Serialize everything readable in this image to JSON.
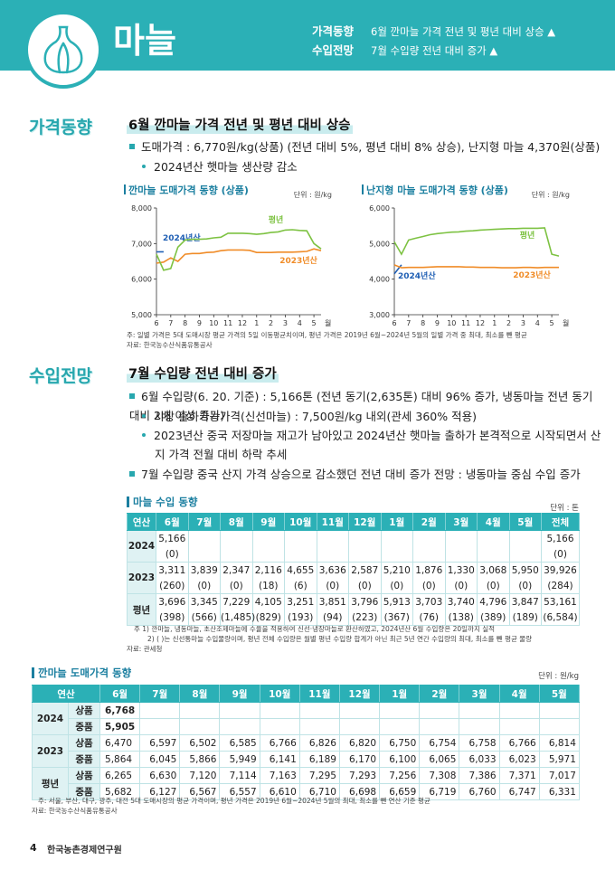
{
  "header": {
    "title": "마늘",
    "summary": [
      {
        "label": "가격동향",
        "text": "6월 깐마늘 가격 전년 및 평년 대비 상승 ▲"
      },
      {
        "label": "수입전망",
        "text": "7월 수입량 전년 대비 증가 ▲"
      }
    ]
  },
  "price": {
    "label": "가격동향",
    "title": "6월 깐마늘 가격 전년 및 평년 대비 상승",
    "bullet": "도매가격 : 6,770원/kg(상품) (전년 대비 5%, 평년 대비 8% 상승), 난지형 마늘 4,370원(상품)",
    "sub": "2024년산 햇마늘 생산량 감소",
    "charts": [
      {
        "type": "line",
        "title": "깐마늘 도매가격 동향 (상품)",
        "unit": "단위 : 원/kg",
        "categories": [
          "6",
          null,
          "7",
          null,
          "8",
          null,
          "9",
          null,
          "10",
          null,
          "11",
          null,
          "12",
          null,
          "1",
          null,
          "2",
          null,
          "3",
          null,
          "4",
          null,
          "5",
          null
        ],
        "x_unit": "월",
        "ylim": [
          5000,
          8000
        ],
        "yticks": [
          {
            "value": 5000,
            "label": "5,000"
          },
          {
            "value": 6000,
            "label": "6,000"
          },
          {
            "value": 7000,
            "label": "7,000"
          },
          {
            "value": 8000,
            "label": "8,000"
          }
        ],
        "series": [
          {
            "name": "2024년산",
            "color": "#1f5fb4",
            "values": [
              6768,
              6770,
              null,
              null,
              null,
              null,
              null,
              null,
              null,
              null,
              null,
              null,
              null,
              null,
              null,
              null,
              null,
              null,
              null,
              null,
              null,
              null,
              null,
              null
            ]
          },
          {
            "name": "2023년산",
            "color": "#f08c28",
            "values": [
              6450,
              6480,
              6600,
              6500,
              6700,
              6720,
              6720,
              6750,
              6760,
              6800,
              6820,
              6820,
              6820,
              6810,
              6750,
              6750,
              6750,
              6760,
              6760,
              6760,
              6770,
              6780,
              6850,
              6800
            ]
          },
          {
            "name": "평년",
            "color": "#7dc242",
            "values": [
              6700,
              6250,
              6300,
              6900,
              7100,
              7120,
              7120,
              7130,
              7160,
              7180,
              7290,
              7290,
              7290,
              7280,
              7260,
              7280,
              7310,
              7330,
              7380,
              7390,
              7370,
              7360,
              7000,
              6850
            ]
          }
        ]
      },
      {
        "type": "line",
        "title": "난지형 마늘 도매가격 동향 (상품)",
        "unit": "단위 : 원/kg",
        "categories": [
          "6",
          null,
          "7",
          null,
          "8",
          null,
          "9",
          null,
          "10",
          null,
          "11",
          null,
          "12",
          null,
          "1",
          null,
          "2",
          null,
          "3",
          null,
          "4",
          null,
          "5",
          null
        ],
        "x_unit": "월",
        "ylim": [
          3000,
          6000
        ],
        "yticks": [
          {
            "value": 3000,
            "label": "3,000"
          },
          {
            "value": 4000,
            "label": "4,000"
          },
          {
            "value": 5000,
            "label": "5,000"
          },
          {
            "value": 6000,
            "label": "6,000"
          }
        ],
        "series": [
          {
            "name": "2024년산",
            "color": "#1f5fb4",
            "values": [
              4150,
              4400,
              null,
              null,
              null,
              null,
              null,
              null,
              null,
              null,
              null,
              null,
              null,
              null,
              null,
              null,
              null,
              null,
              null,
              null,
              null,
              null,
              null,
              null
            ]
          },
          {
            "name": "2023년산",
            "color": "#f08c28",
            "values": [
              4400,
              4320,
              4330,
              4330,
              4330,
              4340,
              4350,
              4350,
              4350,
              4350,
              4340,
              4340,
              4330,
              4330,
              4330,
              4320,
              4320,
              4320,
              4330,
              4330,
              4320,
              4330,
              4330,
              4330
            ]
          },
          {
            "name": "평년",
            "color": "#7dc242",
            "values": [
              5050,
              4700,
              5100,
              5150,
              5200,
              5250,
              5280,
              5300,
              5320,
              5330,
              5350,
              5360,
              5380,
              5390,
              5400,
              5410,
              5420,
              5420,
              5430,
              5430,
              5430,
              5440,
              4700,
              4650
            ]
          }
        ]
      }
    ],
    "notes": [
      "주: 일별 가격은 5대 도매시장 평균 가격의 5일 이동평균치이며, 평년 가격은 2019년 6월~2024년 5월의 일별 가격 중 최대, 최소를 뺀 평균",
      "자료: 한국농수산식품유통공사"
    ]
  },
  "import": {
    "label": "수입전망",
    "title": "7월 수입량 전년 대비 증가",
    "bullets": [
      {
        "text": "6월 수입량(6. 20. 기준) : 5,166톤 (전년 동기(2,635톤) 대비 96% 증가, 냉동마늘 전년 동기 대비 2배 이상 증가)",
        "subs": [
          "시장 출하가능가격(신선마늘) : 7,500원/kg 내외(관세 360% 적용)",
          "2023년산 중국 저장마늘 재고가 남아있고 2024년산 햇마늘 출하가 본격적으로 시작되면서 산지 가격 전월 대비 하락 추세"
        ]
      },
      {
        "text": "7월 수입량 중국 산지 가격 상승으로 감소했던 전년 대비 증가 전망 : 냉동마늘 중심 수입 증가"
      }
    ],
    "table": {
      "title": "마늘 수입 동향",
      "unit": "단위 : 톤",
      "columns": [
        "연산",
        "6월",
        "7월",
        "8월",
        "9월",
        "10월",
        "11월",
        "12월",
        "1월",
        "2월",
        "3월",
        "4월",
        "5월",
        "전체"
      ],
      "rows": [
        {
          "year": "2024",
          "values": [
            "5,166",
            null,
            null,
            null,
            null,
            null,
            null,
            null,
            null,
            null,
            null,
            null,
            "5,166"
          ],
          "paren": [
            "(0)",
            null,
            null,
            null,
            null,
            null,
            null,
            null,
            null,
            null,
            null,
            null,
            "(0)"
          ]
        },
        {
          "year": "2023",
          "values": [
            "3,311",
            "3,839",
            "2,347",
            "2,116",
            "4,655",
            "3,636",
            "2,587",
            "5,210",
            "1,876",
            "1,330",
            "3,068",
            "5,950",
            "39,926"
          ],
          "paren": [
            "(260)",
            "(0)",
            "(0)",
            "(18)",
            "(6)",
            "(0)",
            "(0)",
            "(0)",
            "(0)",
            "(0)",
            "(0)",
            "(0)",
            "(284)"
          ]
        },
        {
          "year": "평년",
          "values": [
            "3,696",
            "3,345",
            "7,229",
            "4,105",
            "3,251",
            "3,851",
            "3,796",
            "5,913",
            "3,703",
            "3,740",
            "4,796",
            "3,847",
            "53,161"
          ],
          "paren": [
            "(398)",
            "(566)",
            "(1,485)",
            "(829)",
            "(193)",
            "(94)",
            "(223)",
            "(367)",
            "(76)",
            "(138)",
            "(389)",
            "(189)",
            "(6,584)"
          ]
        }
      ]
    },
    "notes": [
      "주 1) 깐마늘, 냉동마늘, 초산조제마늘에 수율을 적용하여 신선·냉장마늘로 환산하였고, 2024년산 6월 수입량은 20일까지 실적",
      "2) ( )는 신선통마늘 수입물량이며, 평년 전체 수입량은 월별 평년 수입량 합계가 아닌 최근 5년 연간 수입량의 최대, 최소를 뺀 평균 물량",
      "자료: 관세청"
    ]
  },
  "wholesale": {
    "title": "깐마늘 도매가격 동향",
    "unit": "단위 : 원/kg",
    "columns": [
      "연산",
      "6월",
      "7월",
      "8월",
      "9월",
      "10월",
      "11월",
      "12월",
      "1월",
      "2월",
      "3월",
      "4월",
      "5월"
    ],
    "groups": [
      {
        "year": "2024",
        "rows": [
          {
            "grade": "상품",
            "values": [
              "6,768",
              null,
              null,
              null,
              null,
              null,
              null,
              null,
              null,
              null,
              null,
              null
            ]
          },
          {
            "grade": "중품",
            "values": [
              "5,905",
              null,
              null,
              null,
              null,
              null,
              null,
              null,
              null,
              null,
              null,
              null
            ]
          }
        ]
      },
      {
        "year": "2023",
        "rows": [
          {
            "grade": "상품",
            "values": [
              "6,470",
              "6,597",
              "6,502",
              "6,585",
              "6,766",
              "6,826",
              "6,820",
              "6,750",
              "6,754",
              "6,758",
              "6,766",
              "6,814"
            ]
          },
          {
            "grade": "중품",
            "values": [
              "5,864",
              "6,045",
              "5,866",
              "5,949",
              "6,141",
              "6,189",
              "6,170",
              "6,100",
              "6,065",
              "6,033",
              "6,023",
              "5,971"
            ]
          }
        ]
      },
      {
        "year": "평년",
        "rows": [
          {
            "grade": "상품",
            "values": [
              "6,265",
              "6,630",
              "7,120",
              "7,114",
              "7,163",
              "7,295",
              "7,293",
              "7,256",
              "7,308",
              "7,386",
              "7,371",
              "7,017"
            ]
          },
          {
            "grade": "중품",
            "values": [
              "5,682",
              "6,127",
              "6,567",
              "6,557",
              "6,610",
              "6,710",
              "6,698",
              "6,659",
              "6,719",
              "6,760",
              "6,747",
              "6,331"
            ]
          }
        ]
      }
    ],
    "notes": [
      "주: 서울, 부산, 대구, 광주, 대전 5대 도매시장의 평균 가격이며, 평년 가격은 2019년 6월~2024년 5월의 최대, 최소를 뺀 연산 기준 평균",
      "자료: 한국농수산식품유통공사"
    ]
  },
  "footer": {
    "page": "4",
    "org": "한국농촌경제연구원"
  }
}
